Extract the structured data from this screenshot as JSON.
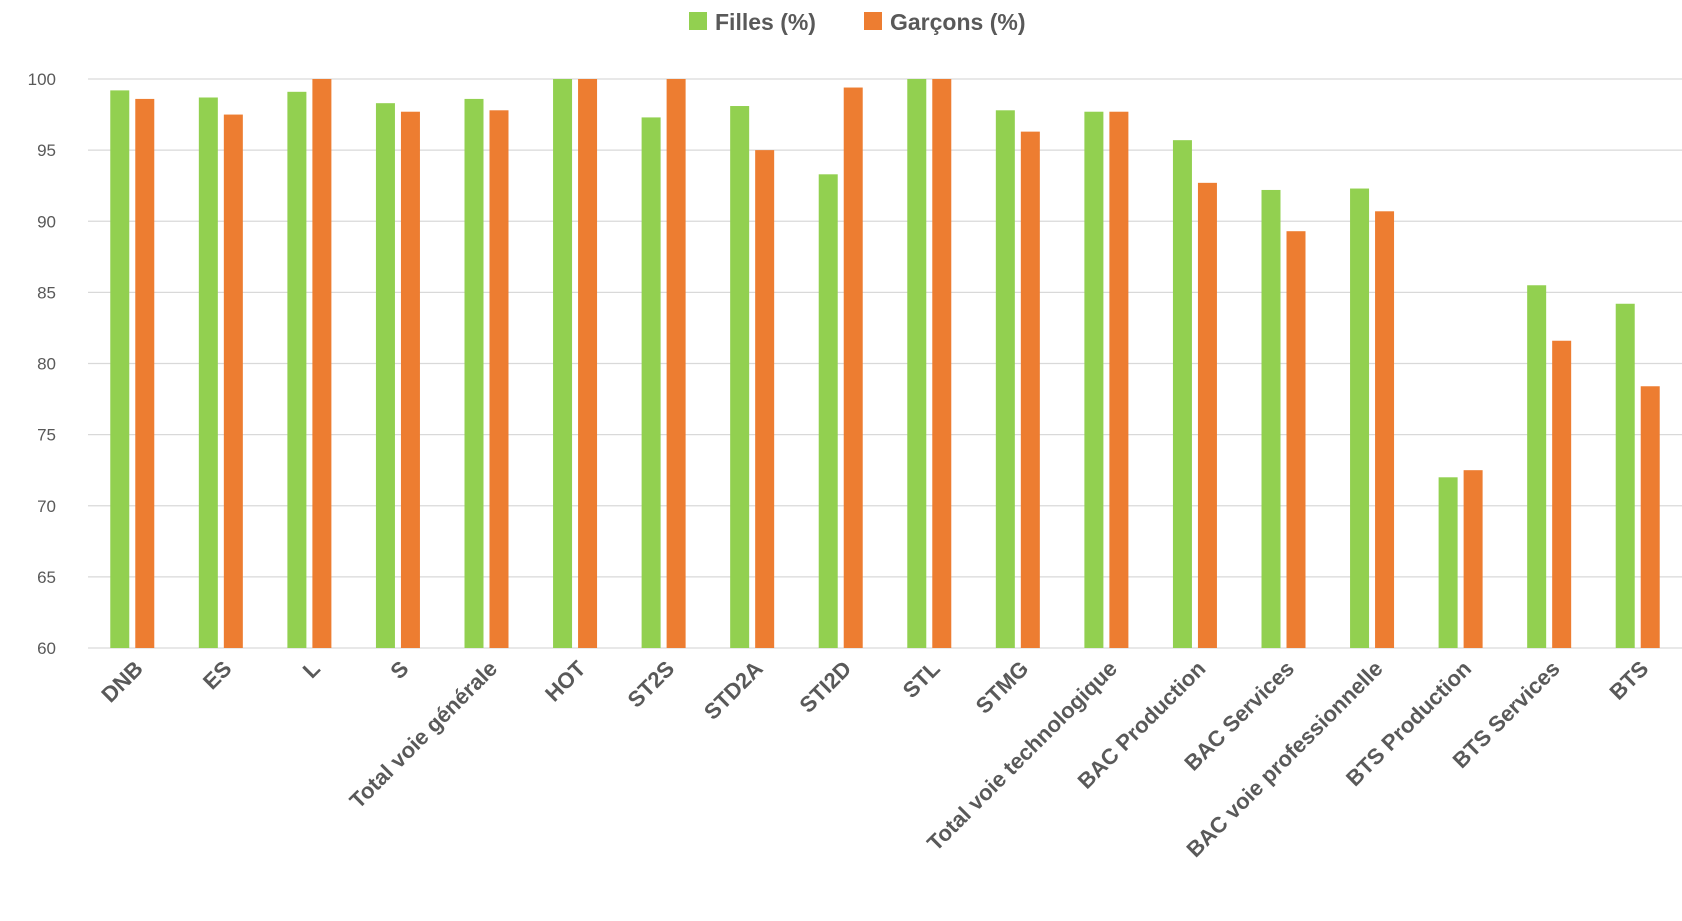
{
  "chart_data": {
    "type": "bar",
    "categories": [
      "DNB",
      "ES",
      "L",
      "S",
      "Total voie générale",
      "HOT",
      "ST2S",
      "STD2A",
      "STI2D",
      "STL",
      "STMG",
      "Total voie technologique",
      "BAC Production",
      "BAC Services",
      "BAC voie professionnelle",
      "BTS Production",
      "BTS Services",
      "BTS"
    ],
    "series": [
      {
        "name": "Filles (%)",
        "color": "#92d050",
        "values": [
          99.2,
          98.7,
          99.1,
          98.3,
          98.6,
          100,
          97.3,
          98.1,
          93.3,
          100,
          97.8,
          97.7,
          95.7,
          92.2,
          92.3,
          72.0,
          85.5,
          84.2
        ]
      },
      {
        "name": "Garçons (%)",
        "color": "#ed7d31",
        "values": [
          98.6,
          97.5,
          100,
          97.7,
          97.8,
          100,
          100,
          95.0,
          99.4,
          100,
          96.3,
          97.7,
          92.7,
          89.3,
          90.7,
          72.5,
          81.6,
          78.4
        ]
      }
    ],
    "ylim": [
      60,
      100
    ],
    "yticks": [
      60,
      65,
      70,
      75,
      80,
      85,
      90,
      95,
      100
    ],
    "grid": true,
    "legend_position": "top-center"
  }
}
